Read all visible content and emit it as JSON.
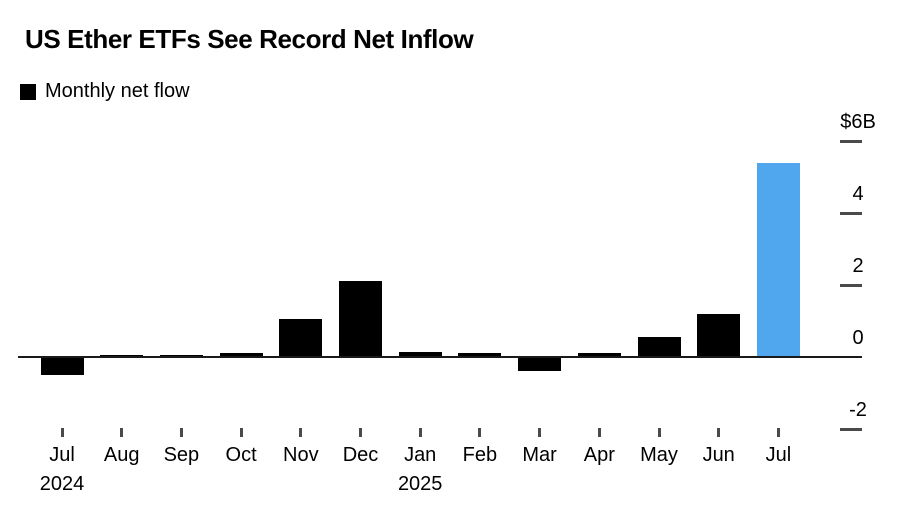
{
  "title": "US Ether ETFs See Record Net Inflow",
  "legend": {
    "label": "Monthly net flow"
  },
  "colors": {
    "bar": "#000000",
    "highlight": "#50A7EE",
    "axis_line": "#1a1a1a",
    "tick": "#4a4a4a",
    "text": "#000000",
    "background": "#ffffff"
  },
  "chart_data": {
    "type": "bar",
    "title": "US Ether ETFs See Record Net Inflow",
    "series_name": "Monthly net flow",
    "unit": "billions of US dollars",
    "categories": [
      "Jul",
      "Aug",
      "Sep",
      "Oct",
      "Nov",
      "Dec",
      "Jan",
      "Feb",
      "Mar",
      "Apr",
      "May",
      "Jun",
      "Jul"
    ],
    "year_markers": [
      {
        "index": 0,
        "label": "2024"
      },
      {
        "index": 6,
        "label": "2025"
      }
    ],
    "values": [
      -0.5,
      0.05,
      0.05,
      0.1,
      1.05,
      2.1,
      0.15,
      0.1,
      -0.4,
      0.1,
      0.55,
      1.2,
      5.4
    ],
    "highlight_index": 12,
    "y_ticks": [
      {
        "value": 6,
        "label": "$6B"
      },
      {
        "value": 4,
        "label": "4"
      },
      {
        "value": 2,
        "label": "2"
      },
      {
        "value": 0,
        "label": "0"
      },
      {
        "value": -2,
        "label": "-2"
      }
    ],
    "ylim": [
      -2.6,
      6.6
    ],
    "grid": false,
    "legend_position": "top-left",
    "y_axis_side": "right"
  }
}
